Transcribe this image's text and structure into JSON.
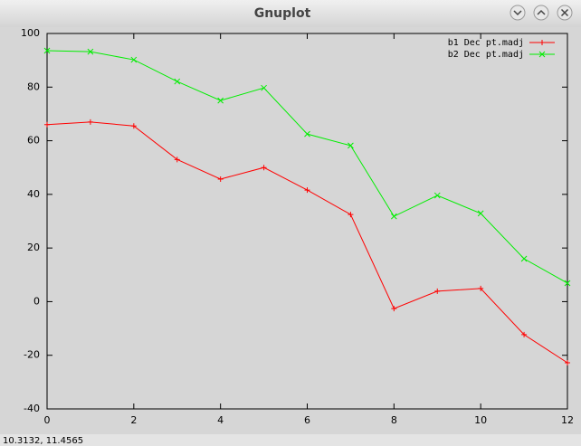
{
  "window_title": "Gnuplot",
  "status": "10.3132,  11.4565",
  "chart_data": {
    "type": "line",
    "x": [
      0,
      1,
      2,
      3,
      4,
      5,
      6,
      7,
      8,
      9,
      10,
      11,
      12
    ],
    "series": [
      {
        "name": "b1 Dec pt.madj",
        "color": "#ff0000",
        "marker": "plus",
        "values": [
          66,
          67,
          65.5,
          53,
          45.7,
          50,
          41.6,
          32.5,
          -2.6,
          3.9,
          4.9,
          -12.3,
          -22.8
        ]
      },
      {
        "name": "b2 Dec pt.madj",
        "color": "#00ee00",
        "marker": "cross",
        "values": [
          93.6,
          93.2,
          90.2,
          82.1,
          75,
          79.7,
          62.5,
          58.2,
          31.8,
          39.6,
          32.9,
          16,
          6.9
        ]
      }
    ],
    "xlim": [
      0,
      12
    ],
    "xticks": [
      0,
      2,
      4,
      6,
      8,
      10,
      12
    ],
    "ylim": [
      -40,
      100
    ],
    "yticks": [
      -40,
      -20,
      0,
      20,
      40,
      60,
      80,
      100
    ],
    "legend": "top-right",
    "grid": false
  }
}
